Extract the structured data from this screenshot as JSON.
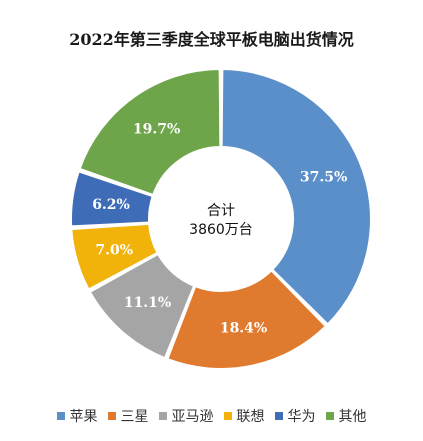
{
  "chart_data": {
    "type": "pie",
    "title": "2022年第三季度全球平板电脑出货情况",
    "center_label": {
      "line1": "合计",
      "line2": "3860万台"
    },
    "legend_position": "bottom",
    "slices": [
      {
        "name": "苹果",
        "value": 37.5,
        "label": "37.5%",
        "color": "#5b8fc9"
      },
      {
        "name": "三星",
        "value": 18.4,
        "label": "18.4%",
        "color": "#e07a2e"
      },
      {
        "name": "亚马逊",
        "value": 11.1,
        "label": "11.1%",
        "color": "#a5a5a5"
      },
      {
        "name": "联想",
        "value": 7.0,
        "label": "7.0%",
        "color": "#f1b20a"
      },
      {
        "name": "华为",
        "value": 6.2,
        "label": "6.2%",
        "color": "#3f6cb7"
      },
      {
        "name": "其他",
        "value": 19.7,
        "label": "19.7%",
        "color": "#6fa54a"
      }
    ]
  }
}
